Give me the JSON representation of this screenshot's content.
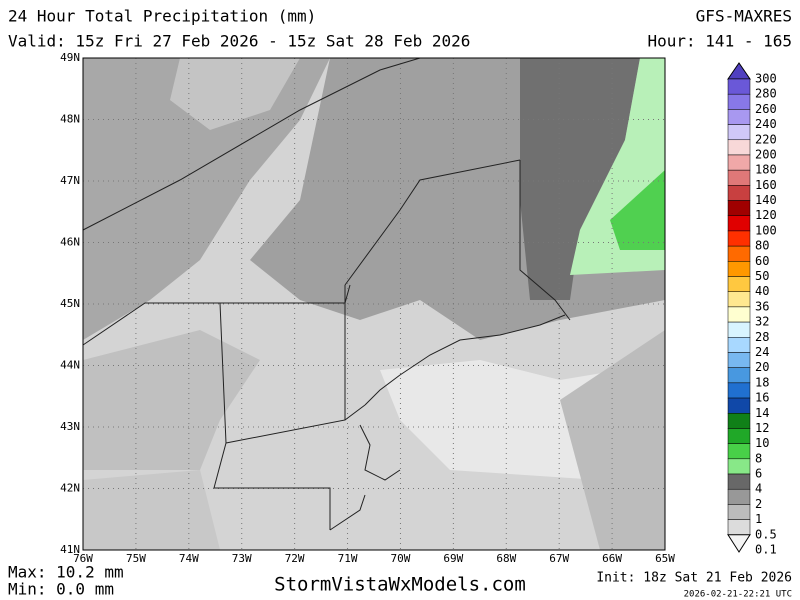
{
  "header": {
    "title": "24 Hour Total Precipitation (mm)",
    "model": "GFS-MAXRES",
    "valid": "Valid: 15z Fri 27 Feb 2026 - 15z Sat 28 Feb 2026",
    "hours": "Hour: 141 - 165"
  },
  "map": {
    "lat_labels": [
      "49N",
      "48N",
      "47N",
      "46N",
      "45N",
      "44N",
      "43N",
      "42N",
      "41N"
    ],
    "lon_labels": [
      "76W",
      "75W",
      "74W",
      "73W",
      "72W",
      "71W",
      "70W",
      "69W",
      "68W",
      "67W",
      "66W",
      "65W"
    ]
  },
  "legend": [
    {
      "label": "300",
      "color": "#5040c0"
    },
    {
      "label": "280",
      "color": "#6a58d8"
    },
    {
      "label": "260",
      "color": "#8878e8"
    },
    {
      "label": "240",
      "color": "#a898f0"
    },
    {
      "label": "220",
      "color": "#d0c8f8"
    },
    {
      "label": "200",
      "color": "#f8d8d8"
    },
    {
      "label": "180",
      "color": "#f0a8a8"
    },
    {
      "label": "160",
      "color": "#e07878"
    },
    {
      "label": "140",
      "color": "#c84040"
    },
    {
      "label": "120",
      "color": "#a00000"
    },
    {
      "label": "100",
      "color": "#e00000"
    },
    {
      "label": "80",
      "color": "#ff3000"
    },
    {
      "label": "60",
      "color": "#ff6a00"
    },
    {
      "label": "50",
      "color": "#ff9800"
    },
    {
      "label": "40",
      "color": "#ffc840"
    },
    {
      "label": "36",
      "color": "#ffe890"
    },
    {
      "label": "32",
      "color": "#ffffd0"
    },
    {
      "label": "28",
      "color": "#d8f4ff"
    },
    {
      "label": "24",
      "color": "#a8d8ff"
    },
    {
      "label": "20",
      "color": "#78b8f0"
    },
    {
      "label": "18",
      "color": "#4898e0"
    },
    {
      "label": "16",
      "color": "#2070d0"
    },
    {
      "label": "14",
      "color": "#1048a8"
    },
    {
      "label": "12",
      "color": "#108018"
    },
    {
      "label": "10",
      "color": "#20a828"
    },
    {
      "label": "8",
      "color": "#48d048"
    },
    {
      "label": "6",
      "color": "#88e888"
    },
    {
      "label": "4",
      "color": "#686868"
    },
    {
      "label": "2",
      "color": "#989898"
    },
    {
      "label": "1",
      "color": "#bcbcbc"
    },
    {
      "label": "0.5",
      "color": "#dcdcdc"
    },
    {
      "label": "0.1",
      "color": "#f4f4f4"
    }
  ],
  "footer": {
    "max": "Max: 10.2 mm",
    "min": "Min: 0.0 mm",
    "site": "StormVistaWxModels.com",
    "init": "Init: 18z Sat 21 Feb 2026",
    "stamp": "2026-02-21-22:21 UTC"
  }
}
